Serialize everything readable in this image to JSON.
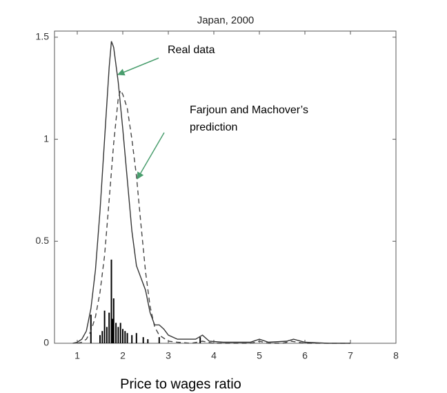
{
  "chart_data": {
    "type": "line",
    "title": "Japan, 2000",
    "xlabel": "Price to wages ratio",
    "annotations": [
      "Real data",
      "Farjoun and Machover’s",
      "prediction"
    ],
    "xlim": [
      0.5,
      8
    ],
    "ylim": [
      0,
      1.53
    ],
    "xticks": [
      1,
      2,
      3,
      4,
      5,
      6,
      7,
      8
    ],
    "yticks": [
      0,
      0.5,
      1,
      1.5
    ],
    "series": [
      {
        "color": "#333333",
        "dashed": false,
        "x": [
          0.9,
          1.0,
          1.1,
          1.2,
          1.3,
          1.4,
          1.5,
          1.6,
          1.7,
          1.75,
          1.8,
          1.9,
          2.0,
          2.1,
          2.2,
          2.3,
          2.4,
          2.5,
          2.6,
          2.7,
          2.8,
          2.9,
          3.0,
          3.2,
          3.4,
          3.6,
          3.75,
          3.9,
          4.2,
          4.8,
          5.0,
          5.2,
          5.6,
          5.75,
          6.0,
          6.5,
          7.0
        ],
        "values": [
          0,
          0.005,
          0.02,
          0.06,
          0.17,
          0.36,
          0.65,
          1.0,
          1.35,
          1.48,
          1.45,
          1.28,
          1.05,
          0.8,
          0.55,
          0.38,
          0.32,
          0.26,
          0.15,
          0.09,
          0.09,
          0.07,
          0.04,
          0.02,
          0.02,
          0.02,
          0.04,
          0.01,
          0.005,
          0.005,
          0.02,
          0.005,
          0.01,
          0.02,
          0.005,
          0,
          0
        ]
      },
      {
        "color": "#444444",
        "dashed": true,
        "x": [
          1.0,
          1.1,
          1.2,
          1.3,
          1.4,
          1.5,
          1.6,
          1.7,
          1.8,
          1.9,
          1.95,
          2.0,
          2.1,
          2.2,
          2.3,
          2.4,
          2.5,
          2.6,
          2.7,
          2.8,
          3.0,
          3.2,
          3.5,
          3.75,
          4.0,
          4.8,
          5.0,
          5.2,
          5.5,
          5.7,
          6.0,
          7.0
        ],
        "values": [
          0,
          0.005,
          0.02,
          0.06,
          0.13,
          0.25,
          0.43,
          0.7,
          0.98,
          1.2,
          1.24,
          1.22,
          1.15,
          1.0,
          0.82,
          0.58,
          0.35,
          0.18,
          0.08,
          0.04,
          0.01,
          0.005,
          0,
          0.01,
          0,
          0,
          0.01,
          0,
          0,
          0.01,
          0,
          0
        ]
      }
    ],
    "spikes": {
      "color": "#000000",
      "x": [
        1.3,
        1.5,
        1.55,
        1.6,
        1.65,
        1.7,
        1.75,
        1.78,
        1.8,
        1.85,
        1.9,
        1.95,
        2.0,
        2.05,
        2.1,
        2.2,
        2.3,
        2.45,
        2.55,
        2.8,
        3.7
      ],
      "values": [
        0.14,
        0.04,
        0.06,
        0.16,
        0.08,
        0.15,
        0.41,
        0.12,
        0.22,
        0.1,
        0.08,
        0.1,
        0.07,
        0.06,
        0.05,
        0.04,
        0.05,
        0.03,
        0.02,
        0.03,
        0.03
      ]
    }
  }
}
